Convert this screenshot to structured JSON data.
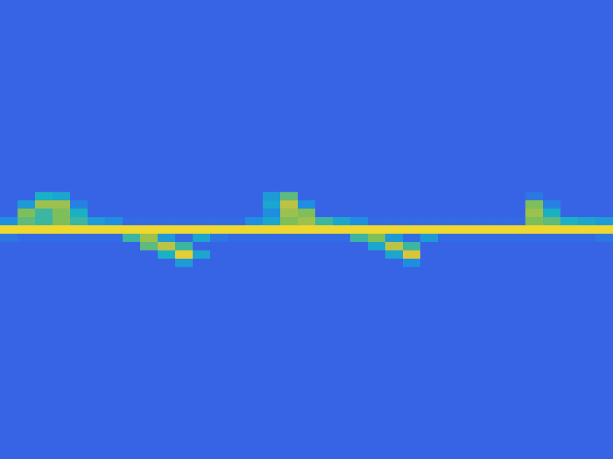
{
  "chart_data": {
    "type": "heatmap",
    "tick_labels": false,
    "xlim": [
      0,
      35
    ],
    "ylim": [
      0,
      55
    ],
    "zlim": [
      0,
      1
    ],
    "background": 0.22,
    "x": [
      0,
      1,
      2,
      3,
      4,
      5,
      6,
      7,
      8,
      9,
      10,
      11,
      12,
      13,
      14,
      15,
      16,
      17,
      18,
      19,
      20,
      21,
      22,
      23,
      24,
      25,
      26,
      27,
      28,
      29,
      30,
      31,
      32,
      33,
      34
    ],
    "y": [
      22,
      23,
      24,
      25,
      26,
      27,
      28,
      29,
      30,
      31,
      32
    ],
    "z": [
      [
        0.22,
        0.22,
        0.22,
        0.22,
        0.22,
        0.22,
        0.22,
        0.22,
        0.22,
        0.22,
        0.22,
        0.22,
        0.22,
        0.22,
        0.22,
        0.22,
        0.22,
        0.22,
        0.22,
        0.22,
        0.22,
        0.22,
        0.22,
        0.22,
        0.22,
        0.22,
        0.22,
        0.22,
        0.22,
        0.22,
        0.22,
        0.22,
        0.22,
        0.22,
        0.22
      ],
      [
        0.22,
        0.22,
        0.55,
        0.5,
        0.22,
        0.22,
        0.22,
        0.22,
        0.22,
        0.22,
        0.22,
        0.22,
        0.22,
        0.22,
        0.22,
        0.45,
        0.65,
        0.22,
        0.22,
        0.22,
        0.22,
        0.22,
        0.22,
        0.22,
        0.22,
        0.22,
        0.22,
        0.22,
        0.22,
        0.22,
        0.3,
        0.22,
        0.22,
        0.22,
        0.22
      ],
      [
        0.22,
        0.45,
        0.75,
        0.75,
        0.35,
        0.22,
        0.22,
        0.22,
        0.22,
        0.22,
        0.22,
        0.22,
        0.22,
        0.22,
        0.22,
        0.5,
        0.8,
        0.4,
        0.22,
        0.22,
        0.22,
        0.22,
        0.22,
        0.22,
        0.22,
        0.22,
        0.22,
        0.22,
        0.22,
        0.22,
        0.7,
        0.35,
        0.22,
        0.22,
        0.22
      ],
      [
        0.22,
        0.7,
        0.6,
        0.7,
        0.55,
        0.22,
        0.22,
        0.22,
        0.22,
        0.22,
        0.22,
        0.22,
        0.22,
        0.22,
        0.22,
        0.4,
        0.75,
        0.7,
        0.22,
        0.22,
        0.22,
        0.22,
        0.22,
        0.22,
        0.22,
        0.22,
        0.22,
        0.22,
        0.22,
        0.22,
        0.75,
        0.55,
        0.22,
        0.22,
        0.22
      ],
      [
        0.4,
        0.65,
        0.6,
        0.7,
        0.6,
        0.45,
        0.4,
        0.25,
        0.25,
        0.25,
        0.25,
        0.25,
        0.25,
        0.25,
        0.4,
        0.5,
        0.7,
        0.75,
        0.6,
        0.5,
        0.4,
        0.25,
        0.25,
        0.25,
        0.25,
        0.25,
        0.25,
        0.25,
        0.25,
        0.25,
        0.7,
        0.65,
        0.55,
        0.5,
        0.45
      ],
      [
        0.95,
        0.95,
        0.95,
        0.95,
        0.95,
        0.95,
        0.95,
        0.95,
        0.95,
        0.95,
        0.95,
        0.95,
        0.95,
        0.95,
        0.95,
        0.95,
        0.95,
        0.95,
        0.95,
        0.95,
        0.95,
        0.95,
        0.95,
        0.95,
        0.95,
        0.95,
        0.95,
        0.95,
        0.95,
        0.95,
        0.95,
        0.95,
        0.95,
        0.95,
        0.95
      ],
      [
        0.3,
        0.25,
        0.25,
        0.25,
        0.25,
        0.25,
        0.25,
        0.6,
        0.75,
        0.45,
        0.25,
        0.5,
        0.3,
        0.25,
        0.25,
        0.25,
        0.25,
        0.25,
        0.25,
        0.25,
        0.6,
        0.7,
        0.45,
        0.25,
        0.45,
        0.25,
        0.25,
        0.25,
        0.25,
        0.25,
        0.25,
        0.25,
        0.25,
        0.25,
        0.3
      ],
      [
        0.22,
        0.22,
        0.22,
        0.22,
        0.22,
        0.22,
        0.22,
        0.22,
        0.65,
        0.8,
        0.6,
        0.22,
        0.22,
        0.22,
        0.22,
        0.22,
        0.22,
        0.22,
        0.22,
        0.22,
        0.22,
        0.5,
        0.8,
        0.6,
        0.22,
        0.22,
        0.22,
        0.22,
        0.22,
        0.22,
        0.22,
        0.22,
        0.22,
        0.22,
        0.22
      ],
      [
        0.22,
        0.22,
        0.22,
        0.22,
        0.22,
        0.22,
        0.22,
        0.22,
        0.22,
        0.55,
        0.9,
        0.5,
        0.22,
        0.22,
        0.22,
        0.22,
        0.22,
        0.22,
        0.22,
        0.22,
        0.22,
        0.22,
        0.5,
        0.85,
        0.22,
        0.22,
        0.22,
        0.22,
        0.22,
        0.22,
        0.22,
        0.22,
        0.22,
        0.22,
        0.22
      ],
      [
        0.22,
        0.22,
        0.22,
        0.22,
        0.22,
        0.22,
        0.22,
        0.22,
        0.22,
        0.22,
        0.45,
        0.22,
        0.22,
        0.22,
        0.22,
        0.22,
        0.22,
        0.22,
        0.22,
        0.22,
        0.22,
        0.22,
        0.22,
        0.4,
        0.22,
        0.22,
        0.22,
        0.22,
        0.22,
        0.22,
        0.22,
        0.22,
        0.22,
        0.22,
        0.22
      ],
      [
        0.22,
        0.22,
        0.22,
        0.22,
        0.22,
        0.22,
        0.22,
        0.22,
        0.22,
        0.22,
        0.22,
        0.22,
        0.22,
        0.22,
        0.22,
        0.22,
        0.22,
        0.22,
        0.22,
        0.22,
        0.22,
        0.22,
        0.22,
        0.22,
        0.22,
        0.22,
        0.22,
        0.22,
        0.22,
        0.22,
        0.22,
        0.22,
        0.22,
        0.22,
        0.22
      ]
    ]
  }
}
